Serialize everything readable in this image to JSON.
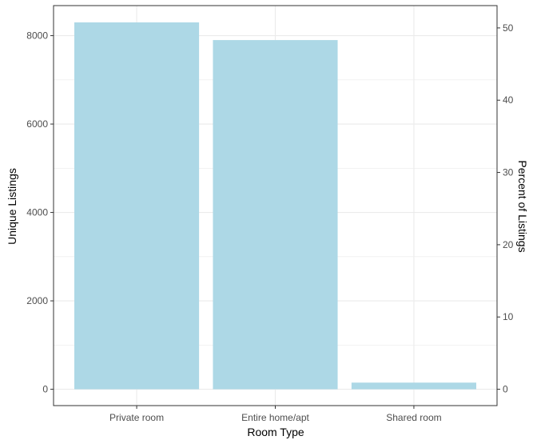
{
  "chart_data": {
    "type": "bar",
    "categories": [
      "Private room",
      "Entire home/apt",
      "Shared room"
    ],
    "values": [
      8300,
      7900,
      150
    ],
    "xlabel": "Room Type",
    "ylabel": "Unique Listings",
    "y2label": "Percent of Listings",
    "ylim": [
      -370,
      8680
    ],
    "y_ticks": [
      0,
      2000,
      4000,
      6000,
      8000
    ],
    "y_tick_labels": [
      "0",
      "2000",
      "4000",
      "6000",
      "8000"
    ],
    "y2_ticks": [
      0,
      10,
      20,
      30,
      40,
      50
    ],
    "y2_tick_labels": [
      "0",
      "10",
      "20",
      "30",
      "40",
      "50"
    ],
    "y2_scale_total": 16350,
    "grid": true,
    "bar_color": "#add8e6",
    "grid_color": "#ebebeb",
    "border_color": "#333333"
  }
}
